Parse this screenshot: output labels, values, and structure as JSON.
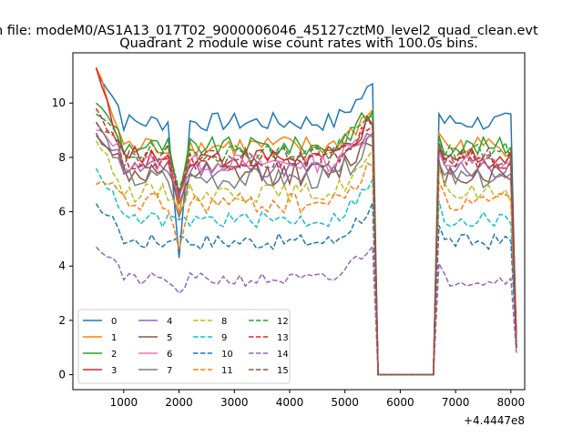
{
  "chart_data": {
    "type": "line",
    "suptitle": "n file: modeM0/AS1A13_017T02_9000006046_45127cztM0_level2_quad_clean.evt",
    "title": "Quadrant 2 module wise count rates with 100.0s bins.",
    "xlabel": "",
    "ylabel": "",
    "x_offset_label": "+4.4447e8",
    "xlim": [
      80,
      8250
    ],
    "ylim": [
      -0.55,
      11.85
    ],
    "x_ticks": [
      1000,
      2000,
      3000,
      4000,
      5000,
      6000,
      7000,
      8000
    ],
    "x_tick_labels": [
      "1000",
      "2000",
      "3000",
      "4000",
      "5000",
      "6000",
      "7000",
      "8000"
    ],
    "y_ticks": [
      0,
      2,
      4,
      6,
      8,
      10
    ],
    "y_tick_labels": [
      "0",
      "2",
      "4",
      "6",
      "8",
      "10"
    ],
    "grid": false,
    "legend_position": "lower-left",
    "legend_columns": 4,
    "series": [
      {
        "name": "0",
        "color": "#1f77b4",
        "dash": "solid",
        "base": 9.3,
        "start": 11.3,
        "dip": 4.3,
        "after_gap": 9.3,
        "end_drop": 1.0,
        "noise": 0.35
      },
      {
        "name": "1",
        "color": "#ff7f0e",
        "dash": "solid",
        "base": 8.4,
        "start": 11.3,
        "dip": 5.9,
        "after_gap": 8.6,
        "end_drop": 1.1,
        "noise": 0.4
      },
      {
        "name": "2",
        "color": "#2ca02c",
        "dash": "solid",
        "base": 8.4,
        "start": 10.0,
        "dip": 6.5,
        "after_gap": 8.5,
        "end_drop": 1.2,
        "noise": 0.35
      },
      {
        "name": "3",
        "color": "#d62728",
        "dash": "solid",
        "base": 8.0,
        "start": 11.3,
        "dip": 6.5,
        "after_gap": 8.2,
        "end_drop": 1.5,
        "noise": 0.4
      },
      {
        "name": "4",
        "color": "#9467bd",
        "dash": "solid",
        "base": 7.6,
        "start": 8.8,
        "dip": 6.6,
        "after_gap": 8.1,
        "end_drop": 1.0,
        "noise": 0.35
      },
      {
        "name": "5",
        "color": "#8c564b",
        "dash": "solid",
        "base": 7.4,
        "start": 8.9,
        "dip": 6.3,
        "after_gap": 7.6,
        "end_drop": 1.0,
        "noise": 0.45
      },
      {
        "name": "6",
        "color": "#e377c2",
        "dash": "solid",
        "base": 7.8,
        "start": 9.0,
        "dip": 6.7,
        "after_gap": 7.9,
        "end_drop": 1.0,
        "noise": 0.35
      },
      {
        "name": "7",
        "color": "#7f7f7f",
        "dash": "solid",
        "base": 7.2,
        "start": 9.3,
        "dip": 5.8,
        "after_gap": 7.5,
        "end_drop": 1.0,
        "noise": 0.4
      },
      {
        "name": "8",
        "color": "#bcbd22",
        "dash": "dashed",
        "base": 6.7,
        "start": 8.6,
        "dip": 6.1,
        "after_gap": 7.3,
        "end_drop": 1.0,
        "noise": 0.35
      },
      {
        "name": "9",
        "color": "#17becf",
        "dash": "dashed",
        "base": 5.7,
        "start": 7.6,
        "dip": 5.7,
        "after_gap": 6.1,
        "end_drop": 1.0,
        "noise": 0.3
      },
      {
        "name": "10",
        "color": "#1f77b4",
        "dash": "dashed",
        "base": 4.9,
        "start": 6.3,
        "dip": 5.1,
        "after_gap": 5.2,
        "end_drop": 1.0,
        "noise": 0.3
      },
      {
        "name": "11",
        "color": "#ff7f0e",
        "dash": "dashed",
        "base": 6.3,
        "start": 7.0,
        "dip": 4.6,
        "after_gap": 6.8,
        "end_drop": 1.0,
        "noise": 0.4
      },
      {
        "name": "12",
        "color": "#2ca02c",
        "dash": "dashed",
        "base": 8.2,
        "start": 9.6,
        "dip": 6.8,
        "after_gap": 8.4,
        "end_drop": 1.0,
        "noise": 0.35
      },
      {
        "name": "13",
        "color": "#d62728",
        "dash": "dashed",
        "base": 7.9,
        "start": 9.8,
        "dip": 6.7,
        "after_gap": 8.0,
        "end_drop": 1.0,
        "noise": 0.35
      },
      {
        "name": "14",
        "color": "#9467bd",
        "dash": "dashed",
        "base": 3.5,
        "start": 4.7,
        "dip": 3.0,
        "after_gap": 3.8,
        "end_drop": 0.8,
        "noise": 0.25
      },
      {
        "name": "15",
        "color": "#8c564b",
        "dash": "dashed",
        "base": 8.0,
        "start": 9.3,
        "dip": 6.7,
        "after_gap": 8.2,
        "end_drop": 1.0,
        "noise": 0.4
      }
    ]
  }
}
